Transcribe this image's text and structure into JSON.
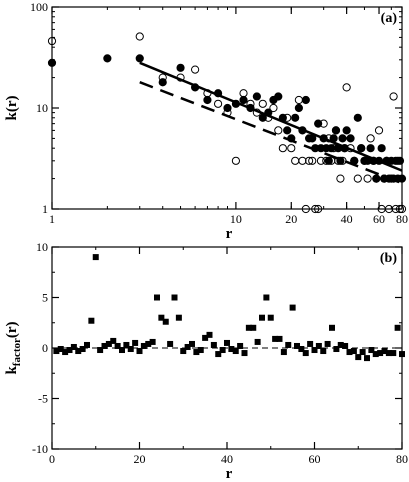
{
  "chart_data": [
    {
      "panel_label": "(a)",
      "type": "scatter",
      "x_scale": "log",
      "y_scale": "log",
      "xlabel": "r",
      "ylabel": "k(r)",
      "xlim": [
        1,
        80
      ],
      "ylim": [
        1,
        100
      ],
      "x_ticks": [
        {
          "value": 1,
          "label": "1"
        },
        {
          "value": 10,
          "label": "10"
        },
        {
          "value": 20,
          "label": "20"
        },
        {
          "value": 40,
          "label": "40"
        },
        {
          "value": 60,
          "label": "60"
        },
        {
          "value": 80,
          "label": "80"
        }
      ],
      "y_ticks": [
        {
          "value": 1,
          "label": "1"
        },
        {
          "value": 10,
          "label": "10"
        },
        {
          "value": 100,
          "label": "100"
        }
      ],
      "series": [
        {
          "marker": "filled-circle",
          "color": "#000000",
          "points": [
            [
              1,
              28
            ],
            [
              2,
              31
            ],
            [
              3,
              31
            ],
            [
              4,
              18
            ],
            [
              5,
              25
            ],
            [
              6,
              16
            ],
            [
              7,
              12
            ],
            [
              8,
              14
            ],
            [
              9,
              10
            ],
            [
              10,
              11
            ],
            [
              11,
              12
            ],
            [
              12,
              10
            ],
            [
              13,
              13
            ],
            [
              14,
              8
            ],
            [
              15,
              9
            ],
            [
              16,
              12
            ],
            [
              17,
              13
            ],
            [
              18,
              8
            ],
            [
              19,
              6
            ],
            [
              20,
              5
            ],
            [
              21,
              8
            ],
            [
              22,
              10
            ],
            [
              23,
              6
            ],
            [
              24,
              12
            ],
            [
              25,
              5
            ],
            [
              26,
              5
            ],
            [
              27,
              4
            ],
            [
              28,
              7
            ],
            [
              29,
              4
            ],
            [
              30,
              5
            ],
            [
              31,
              4
            ],
            [
              32,
              3
            ],
            [
              33,
              4
            ],
            [
              34,
              5
            ],
            [
              35,
              6
            ],
            [
              36,
              4
            ],
            [
              37,
              3
            ],
            [
              38,
              5
            ],
            [
              39,
              4
            ],
            [
              40,
              6
            ],
            [
              42,
              5
            ],
            [
              44,
              3
            ],
            [
              46,
              8
            ],
            [
              48,
              4
            ],
            [
              50,
              3
            ],
            [
              52,
              3
            ],
            [
              54,
              4
            ],
            [
              56,
              3
            ],
            [
              58,
              2
            ],
            [
              60,
              3
            ],
            [
              62,
              4
            ],
            [
              64,
              2
            ],
            [
              66,
              3
            ],
            [
              68,
              2
            ],
            [
              70,
              3
            ],
            [
              72,
              2
            ],
            [
              74,
              3
            ],
            [
              76,
              2
            ],
            [
              78,
              3
            ],
            [
              80,
              2
            ]
          ]
        },
        {
          "marker": "open-circle",
          "color": "#000000",
          "points": [
            [
              1,
              46
            ],
            [
              3,
              51
            ],
            [
              4,
              20
            ],
            [
              5,
              20
            ],
            [
              6,
              24
            ],
            [
              7,
              14
            ],
            [
              8,
              11
            ],
            [
              9,
              9
            ],
            [
              10,
              3
            ],
            [
              11,
              14
            ],
            [
              12,
              11
            ],
            [
              13,
              9
            ],
            [
              14,
              11
            ],
            [
              15,
              8
            ],
            [
              16,
              10
            ],
            [
              17,
              6
            ],
            [
              18,
              4
            ],
            [
              19,
              8
            ],
            [
              20,
              4
            ],
            [
              21,
              3
            ],
            [
              22,
              12
            ],
            [
              23,
              3
            ],
            [
              24,
              1
            ],
            [
              25,
              3
            ],
            [
              26,
              3
            ],
            [
              27,
              1
            ],
            [
              28,
              1
            ],
            [
              29,
              3
            ],
            [
              30,
              7
            ],
            [
              31,
              3
            ],
            [
              32,
              5
            ],
            [
              33,
              3
            ],
            [
              34,
              4
            ],
            [
              35,
              6
            ],
            [
              36,
              3
            ],
            [
              37,
              2
            ],
            [
              38,
              3
            ],
            [
              39,
              4
            ],
            [
              40,
              16
            ],
            [
              42,
              4
            ],
            [
              44,
              3
            ],
            [
              46,
              2
            ],
            [
              48,
              4
            ],
            [
              50,
              3
            ],
            [
              52,
              2
            ],
            [
              54,
              5
            ],
            [
              56,
              3
            ],
            [
              58,
              2
            ],
            [
              60,
              6
            ],
            [
              62,
              1
            ],
            [
              64,
              2
            ],
            [
              66,
              3
            ],
            [
              68,
              1
            ],
            [
              70,
              2
            ],
            [
              72,
              13
            ],
            [
              74,
              1
            ],
            [
              76,
              3
            ],
            [
              78,
              1
            ],
            [
              80,
              1
            ]
          ]
        }
      ],
      "fit_lines": [
        {
          "style": "solid",
          "width": 2.5,
          "points": [
            [
              3,
              28
            ],
            [
              80,
              2.4
            ]
          ]
        },
        {
          "style": "dashed",
          "width": 2.5,
          "points": [
            [
              3,
              18
            ],
            [
              80,
              1.8
            ]
          ]
        }
      ]
    },
    {
      "panel_label": "(b)",
      "type": "scatter",
      "x_scale": "linear",
      "y_scale": "linear",
      "xlabel": "r",
      "ylabel": "k",
      "ylabel_subscript": "factor",
      "ylabel_suffix": "(r)",
      "xlim": [
        0,
        80
      ],
      "ylim": [
        -10,
        10
      ],
      "x_ticks": [
        {
          "value": 0,
          "label": "0"
        },
        {
          "value": 20,
          "label": "20"
        },
        {
          "value": 40,
          "label": "40"
        },
        {
          "value": 60,
          "label": "60"
        },
        {
          "value": 80,
          "label": "80"
        }
      ],
      "y_ticks": [
        {
          "value": -10,
          "label": "-10"
        },
        {
          "value": -5,
          "label": "-5"
        },
        {
          "value": 0,
          "label": "0"
        },
        {
          "value": 5,
          "label": "5"
        },
        {
          "value": 10,
          "label": "10"
        }
      ],
      "reference_line": {
        "y": 0,
        "style": "dashed"
      },
      "series": [
        {
          "marker": "filled-square",
          "color": "#000000",
          "points": [
            [
              1,
              -0.3
            ],
            [
              2,
              -0.1
            ],
            [
              3,
              -0.4
            ],
            [
              4,
              -0.2
            ],
            [
              5,
              0.1
            ],
            [
              6,
              -0.3
            ],
            [
              7,
              -0.1
            ],
            [
              8,
              0.3
            ],
            [
              9,
              2.7
            ],
            [
              10,
              9.0
            ],
            [
              11,
              -0.2
            ],
            [
              12,
              0.2
            ],
            [
              13,
              0.4
            ],
            [
              14,
              0.7
            ],
            [
              15,
              0.2
            ],
            [
              16,
              -0.2
            ],
            [
              17,
              0.3
            ],
            [
              18,
              -0.1
            ],
            [
              19,
              0.5
            ],
            [
              20,
              -0.3
            ],
            [
              21,
              0.2
            ],
            [
              22,
              0.4
            ],
            [
              23,
              0.6
            ],
            [
              24,
              5.0
            ],
            [
              25,
              3.0
            ],
            [
              26,
              2.6
            ],
            [
              27,
              0.4
            ],
            [
              28,
              5.0
            ],
            [
              29,
              3.0
            ],
            [
              30,
              -0.3
            ],
            [
              31,
              0.1
            ],
            [
              32,
              0.4
            ],
            [
              33,
              -0.4
            ],
            [
              34,
              -0.2
            ],
            [
              35,
              1.0
            ],
            [
              36,
              1.3
            ],
            [
              37,
              0.3
            ],
            [
              38,
              -0.6
            ],
            [
              39,
              -0.2
            ],
            [
              40,
              0.5
            ],
            [
              41,
              -0.1
            ],
            [
              42,
              -0.3
            ],
            [
              43,
              0.2
            ],
            [
              44,
              -0.5
            ],
            [
              45,
              2.0
            ],
            [
              46,
              2.0
            ],
            [
              47,
              0.6
            ],
            [
              48,
              3.0
            ],
            [
              49,
              5.0
            ],
            [
              50,
              3.0
            ],
            [
              51,
              0.9
            ],
            [
              52,
              0.9
            ],
            [
              53,
              -0.4
            ],
            [
              54,
              0.3
            ],
            [
              55,
              4.0
            ],
            [
              56,
              0.2
            ],
            [
              57,
              -0.1
            ],
            [
              58,
              -0.5
            ],
            [
              59,
              0.4
            ],
            [
              60,
              -0.2
            ],
            [
              61,
              0.2
            ],
            [
              62,
              -0.3
            ],
            [
              63,
              0.4
            ],
            [
              64,
              2.0
            ],
            [
              65,
              -0.1
            ],
            [
              66,
              0.3
            ],
            [
              67,
              0.2
            ],
            [
              68,
              -0.4
            ],
            [
              69,
              -0.3
            ],
            [
              70,
              -0.9
            ],
            [
              71,
              -0.4
            ],
            [
              72,
              -1.0
            ],
            [
              73,
              -0.2
            ],
            [
              74,
              -0.6
            ],
            [
              75,
              -0.5
            ],
            [
              76,
              -0.3
            ],
            [
              77,
              -0.5
            ],
            [
              78,
              -0.5
            ],
            [
              79,
              2.0
            ],
            [
              80,
              -0.6
            ]
          ]
        }
      ]
    }
  ]
}
